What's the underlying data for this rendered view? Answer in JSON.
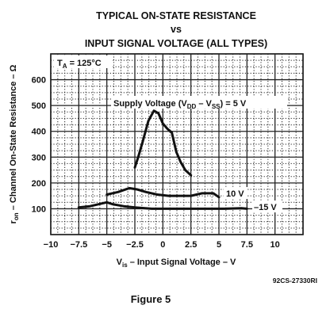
{
  "chart_data": {
    "type": "line",
    "title_lines": [
      "TYPICAL ON-STATE RESISTANCE",
      "vs",
      "INPUT SIGNAL VOLTAGE (ALL TYPES)"
    ],
    "condition": {
      "main": "T",
      "sub": "A",
      "rest": " = 125°C"
    },
    "xlabel": {
      "main": "V",
      "sub": "is",
      "rest": " – Input Signal Voltage – V"
    },
    "ylabel": {
      "main": "r",
      "sub": "on",
      "rest": " – Channel On-State Resistance – Ω"
    },
    "x_ticks": [
      "-10",
      "-7.5",
      "-5",
      "-2.5",
      "0",
      "2.5",
      "5",
      "7.5",
      "10"
    ],
    "x_tick_values": [
      -10,
      -7.5,
      -5,
      -2.5,
      0,
      2.5,
      5,
      7.5,
      10
    ],
    "y_ticks": [
      "100",
      "200",
      "300",
      "400",
      "500",
      "600"
    ],
    "y_tick_values": [
      100,
      200,
      300,
      400,
      500,
      600
    ],
    "xlim": [
      -10,
      12.5
    ],
    "ylim": [
      0,
      700
    ],
    "grid": true,
    "series": [
      {
        "name": "Supply Voltage (VDD – VSS) = 5 V",
        "label": {
          "pre": "Supply Voltage (V",
          "sub1": "DD",
          "mid": " – V",
          "sub2": "SS",
          "post": ") = 5 V"
        },
        "x": [
          -2.5,
          -2.2,
          -1.8,
          -1.3,
          -0.8,
          -0.4,
          0,
          0.4,
          0.8,
          1.2,
          1.6,
          2.0,
          2.5
        ],
        "y": [
          260,
          300,
          360,
          440,
          480,
          470,
          430,
          410,
          395,
          320,
          280,
          250,
          230
        ]
      },
      {
        "name": "10 V",
        "label": {
          "pre": "10 V"
        },
        "x": [
          -5,
          -4,
          -3,
          -2.3,
          -1.5,
          -0.5,
          0.5,
          1.5,
          2.5,
          3.5,
          4.5,
          5
        ],
        "y": [
          155,
          165,
          180,
          175,
          165,
          155,
          150,
          150,
          150,
          160,
          160,
          145
        ]
      },
      {
        "name": "15 V",
        "label": {
          "pre": "15 V"
        },
        "x": [
          -7.5,
          -6.5,
          -5.5,
          -5,
          -4.5,
          -3.5,
          -2.5,
          -1,
          0,
          1,
          2.5,
          4,
          5.5,
          7,
          7.5
        ],
        "y": [
          105,
          110,
          120,
          125,
          118,
          110,
          105,
          100,
          100,
          100,
          100,
          100,
          100,
          102,
          100
        ]
      }
    ]
  },
  "part_number": "92CS-27330RI",
  "figure_caption": "Figure 5"
}
